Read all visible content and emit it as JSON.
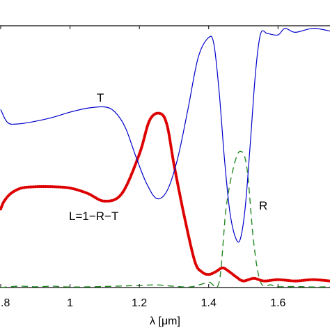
{
  "chart_data": {
    "type": "line",
    "title": "",
    "xlabel": "λ [μm]",
    "ylabel": "",
    "xlim": [
      0.8,
      1.75
    ],
    "ylim": [
      0,
      1
    ],
    "grid": false,
    "xticks": [
      0.8,
      1.0,
      1.2,
      1.4,
      1.6
    ],
    "xtick_labels": [
      ".8",
      "1",
      "1.2",
      "1.4",
      "1.6"
    ],
    "annotations": [
      {
        "text": "T",
        "x": 1.1,
        "y": 0.72
      },
      {
        "text": "L=1−R−T",
        "x": 1.0,
        "y": 0.27
      },
      {
        "text": "R",
        "x": 1.55,
        "y": 0.31
      }
    ],
    "series": [
      {
        "name": "T",
        "color": "#0000cc",
        "style": "solid",
        "x": [
          0.8,
          0.82,
          0.85,
          0.9,
          0.95,
          1.0,
          1.05,
          1.1,
          1.13,
          1.16,
          1.19,
          1.22,
          1.25,
          1.28,
          1.31,
          1.34,
          1.37,
          1.4,
          1.415,
          1.43,
          1.445,
          1.46,
          1.475,
          1.49,
          1.505,
          1.52,
          1.535,
          1.55,
          1.57,
          1.6,
          1.62,
          1.65,
          1.7,
          1.75
        ],
        "y": [
          0.68,
          0.63,
          0.625,
          0.635,
          0.65,
          0.67,
          0.685,
          0.69,
          0.67,
          0.61,
          0.5,
          0.4,
          0.34,
          0.37,
          0.49,
          0.68,
          0.88,
          0.955,
          0.93,
          0.75,
          0.5,
          0.3,
          0.2,
          0.18,
          0.3,
          0.55,
          0.82,
          0.97,
          0.97,
          0.965,
          0.99,
          0.975,
          0.99,
          0.98
        ]
      },
      {
        "name": "L=1−R−T",
        "color": "#dd0000",
        "style": "dotted-thick",
        "x": [
          0.8,
          0.81,
          0.83,
          0.86,
          0.9,
          0.95,
          1.0,
          1.05,
          1.1,
          1.15,
          1.2,
          1.23,
          1.26,
          1.28,
          1.3,
          1.33,
          1.36,
          1.38,
          1.4,
          1.42,
          1.44,
          1.46,
          1.48,
          1.5,
          1.53,
          1.56,
          1.6,
          1.65,
          1.7,
          1.75
        ],
        "y": [
          0.3,
          0.33,
          0.36,
          0.38,
          0.385,
          0.385,
          0.38,
          0.36,
          0.33,
          0.36,
          0.51,
          0.64,
          0.665,
          0.62,
          0.47,
          0.27,
          0.1,
          0.06,
          0.05,
          0.06,
          0.075,
          0.06,
          0.04,
          0.025,
          0.035,
          0.025,
          0.03,
          0.025,
          0.03,
          0.025
        ]
      },
      {
        "name": "R",
        "color": "#228822",
        "style": "dashed",
        "x": [
          0.8,
          0.85,
          0.9,
          0.95,
          1.0,
          1.1,
          1.2,
          1.25,
          1.3,
          1.35,
          1.4,
          1.43,
          1.45,
          1.47,
          1.49,
          1.51,
          1.53,
          1.55,
          1.58,
          1.6,
          1.65,
          1.7,
          1.75
        ],
        "y": [
          0.0,
          0.005,
          0.003,
          0.005,
          0.002,
          0.004,
          0.008,
          0.01,
          0.005,
          0.003,
          0.02,
          0.02,
          0.3,
          0.45,
          0.52,
          0.46,
          0.17,
          0.02,
          0.01,
          0.003,
          0.004,
          0.002,
          0.003
        ]
      }
    ]
  }
}
